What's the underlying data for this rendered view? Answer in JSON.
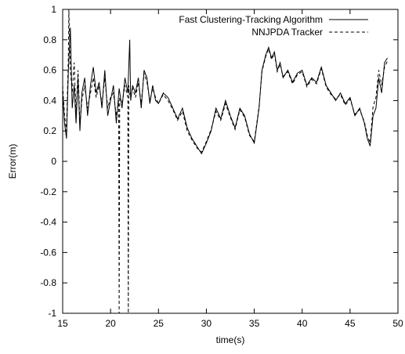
{
  "chart_data": {
    "type": "line",
    "xlabel": "time(s)",
    "ylabel": "Error(m)",
    "xlim": [
      15,
      50
    ],
    "ylim": [
      -1,
      1
    ],
    "xticks": [
      "15",
      "20",
      "25",
      "30",
      "35",
      "40",
      "45",
      "50"
    ],
    "yticks": [
      "-1",
      "-0.8",
      "-0.6",
      "-0.4",
      "-0.2",
      "0",
      "0.2",
      "0.4",
      "0.6",
      "0.8",
      "1"
    ],
    "grid": false,
    "legend_position": "top-right",
    "series": [
      {
        "name": "Fast Clustering-Tracking Algorithm",
        "line_style": "solid",
        "color": "#000000",
        "x": [
          15.0,
          15.2,
          15.4,
          15.6,
          15.8,
          16.0,
          16.2,
          16.4,
          16.6,
          16.8,
          17.0,
          17.3,
          17.6,
          17.9,
          18.2,
          18.5,
          18.8,
          19.1,
          19.4,
          19.7,
          20.0,
          20.3,
          20.6,
          20.9,
          21.2,
          21.5,
          21.8,
          22.0,
          22.1,
          22.3,
          22.6,
          22.9,
          23.2,
          23.5,
          23.8,
          24.1,
          24.4,
          24.7,
          25.0,
          25.5,
          26.0,
          26.5,
          27.0,
          27.5,
          28.0,
          28.5,
          29.0,
          29.5,
          30.0,
          30.5,
          31.0,
          31.5,
          32.0,
          32.5,
          33.0,
          33.5,
          34.0,
          34.5,
          35.0,
          35.5,
          35.8,
          36.2,
          36.5,
          36.8,
          37.1,
          37.4,
          37.7,
          38.0,
          38.5,
          39.0,
          39.5,
          40.0,
          40.5,
          41.0,
          41.5,
          42.0,
          42.5,
          43.0,
          43.5,
          44.0,
          44.5,
          45.0,
          45.5,
          46.0,
          46.5,
          46.8,
          47.1,
          47.4,
          47.7,
          48.0,
          48.3,
          48.6,
          48.9
        ],
        "values": [
          0.45,
          0.25,
          0.15,
          0.6,
          0.88,
          0.35,
          0.5,
          0.25,
          0.55,
          0.2,
          0.45,
          0.55,
          0.3,
          0.5,
          0.62,
          0.45,
          0.52,
          0.35,
          0.6,
          0.3,
          0.4,
          0.5,
          0.25,
          0.48,
          0.35,
          0.55,
          0.45,
          0.8,
          0.4,
          0.5,
          0.45,
          0.55,
          0.35,
          0.6,
          0.55,
          0.38,
          0.5,
          0.4,
          0.38,
          0.45,
          0.42,
          0.35,
          0.28,
          0.35,
          0.22,
          0.15,
          0.1,
          0.05,
          0.12,
          0.2,
          0.35,
          0.28,
          0.4,
          0.3,
          0.22,
          0.35,
          0.3,
          0.18,
          0.12,
          0.35,
          0.6,
          0.7,
          0.75,
          0.68,
          0.72,
          0.6,
          0.65,
          0.55,
          0.6,
          0.52,
          0.58,
          0.6,
          0.5,
          0.55,
          0.52,
          0.62,
          0.5,
          0.45,
          0.4,
          0.45,
          0.38,
          0.42,
          0.3,
          0.35,
          0.25,
          0.15,
          0.1,
          0.3,
          0.35,
          0.55,
          0.45,
          0.65,
          0.68
        ]
      },
      {
        "name": "NNJPDA Tracker",
        "line_style": "dashed",
        "color": "#000000",
        "x": [
          15.0,
          15.2,
          15.4,
          15.6,
          15.65,
          15.8,
          16.0,
          16.2,
          16.4,
          16.6,
          16.8,
          17.0,
          17.3,
          17.6,
          17.9,
          18.2,
          18.5,
          18.8,
          19.1,
          19.4,
          19.7,
          20.0,
          20.3,
          20.6,
          20.85,
          20.9,
          20.95,
          21.2,
          21.5,
          21.8,
          21.85,
          21.9,
          21.95,
          22.3,
          22.6,
          22.9,
          23.2,
          23.5,
          23.8,
          24.1,
          24.4,
          24.7,
          25.0,
          25.5,
          26.0,
          26.5,
          27.0,
          27.5,
          28.0,
          28.5,
          29.0,
          29.5,
          30.0,
          30.5,
          31.0,
          31.5,
          32.0,
          32.5,
          33.0,
          33.5,
          34.0,
          34.5,
          35.0,
          35.5,
          35.8,
          36.2,
          36.5,
          36.8,
          37.1,
          37.4,
          37.7,
          38.0,
          38.5,
          39.0,
          39.5,
          40.0,
          40.5,
          41.0,
          41.5,
          42.0,
          42.5,
          43.0,
          43.5,
          44.0,
          44.5,
          45.0,
          45.5,
          46.0,
          46.5,
          46.8,
          47.1,
          47.4,
          47.7,
          48.0,
          48.3,
          48.6,
          48.9
        ],
        "values": [
          0.5,
          0.3,
          0.2,
          0.7,
          1.0,
          0.6,
          0.45,
          0.65,
          0.3,
          0.6,
          0.25,
          0.4,
          0.5,
          0.35,
          0.45,
          0.55,
          0.42,
          0.5,
          0.38,
          0.55,
          0.35,
          0.42,
          0.45,
          0.3,
          0.4,
          -1.0,
          0.42,
          0.38,
          0.5,
          0.42,
          -1.0,
          0.5,
          0.44,
          0.48,
          0.42,
          0.52,
          0.38,
          0.58,
          0.52,
          0.4,
          0.48,
          0.42,
          0.38,
          0.44,
          0.4,
          0.34,
          0.27,
          0.33,
          0.2,
          0.14,
          0.09,
          0.06,
          0.13,
          0.21,
          0.33,
          0.27,
          0.38,
          0.29,
          0.21,
          0.34,
          0.29,
          0.17,
          0.13,
          0.36,
          0.59,
          0.69,
          0.74,
          0.67,
          0.71,
          0.59,
          0.64,
          0.56,
          0.59,
          0.51,
          0.57,
          0.59,
          0.49,
          0.54,
          0.51,
          0.61,
          0.49,
          0.44,
          0.41,
          0.44,
          0.37,
          0.41,
          0.31,
          0.34,
          0.26,
          0.17,
          0.12,
          0.36,
          0.42,
          0.6,
          0.5,
          0.62,
          0.66
        ]
      }
    ]
  }
}
